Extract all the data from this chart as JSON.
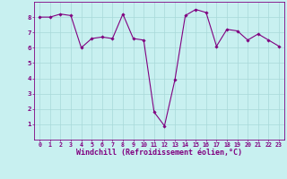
{
  "x": [
    0,
    1,
    2,
    3,
    4,
    5,
    6,
    7,
    8,
    9,
    10,
    11,
    12,
    13,
    14,
    15,
    16,
    17,
    18,
    19,
    20,
    21,
    22,
    23
  ],
  "y": [
    8.0,
    8.0,
    8.2,
    8.1,
    6.0,
    6.6,
    6.7,
    6.6,
    8.2,
    6.6,
    6.5,
    1.8,
    0.9,
    3.9,
    8.1,
    8.5,
    8.3,
    6.1,
    7.2,
    7.1,
    6.5,
    6.9,
    6.5,
    6.1
  ],
  "line_color": "#800080",
  "marker": "D",
  "marker_size": 1.8,
  "bg_color": "#c8f0f0",
  "grid_color": "#a8d8d8",
  "xlabel": "Windchill (Refroidissement éolien,°C)",
  "ylim": [
    0,
    9
  ],
  "xlim": [
    -0.5,
    23.5
  ],
  "yticks": [
    1,
    2,
    3,
    4,
    5,
    6,
    7,
    8
  ],
  "xticks": [
    0,
    1,
    2,
    3,
    4,
    5,
    6,
    7,
    8,
    9,
    10,
    11,
    12,
    13,
    14,
    15,
    16,
    17,
    18,
    19,
    20,
    21,
    22,
    23
  ],
  "tick_label_color": "#800080",
  "tick_label_fontsize": 4.8,
  "xlabel_fontsize": 6.0,
  "xlabel_color": "#800080",
  "spine_color": "#800080",
  "line_width": 0.8
}
